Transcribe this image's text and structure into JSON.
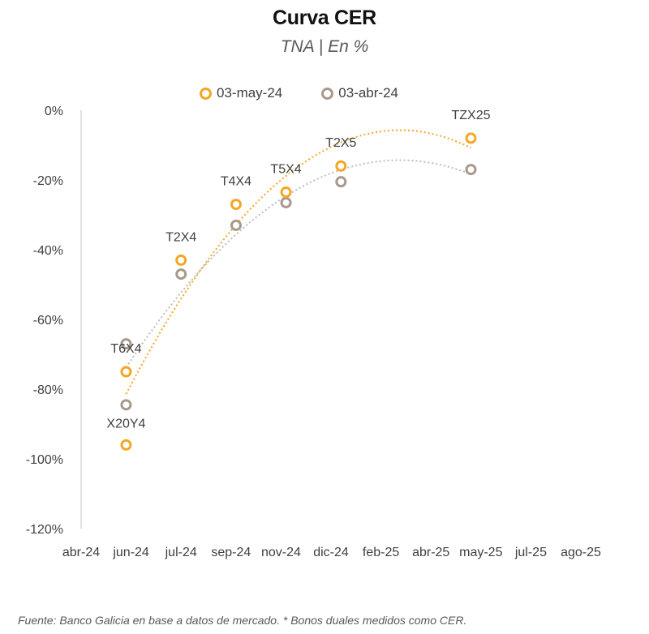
{
  "chart_data": {
    "type": "scatter",
    "title": "Curva CER",
    "subtitle": "TNA | En %",
    "xlabel": "",
    "ylabel": "",
    "x_tick_labels": [
      "abr-24",
      "jun-24",
      "jul-24",
      "sep-24",
      "nov-24",
      "dic-24",
      "feb-25",
      "abr-25",
      "may-25",
      "jul-25",
      "ago-25"
    ],
    "y_ticks": [
      0,
      -20,
      -40,
      -60,
      -80,
      -100,
      -120
    ],
    "y_tick_labels": [
      "0%",
      "-20%",
      "-40%",
      "-60%",
      "-80%",
      "-100%",
      "-120%"
    ],
    "ylim": [
      -120,
      0
    ],
    "legend_position": "top",
    "trendline": "polynomial (dotted)",
    "series": [
      {
        "name": "03-may-24",
        "color": "#F5A623",
        "points": [
          {
            "label": "X20Y4",
            "x": 0.9,
            "y": -96
          },
          {
            "label": "T6X4",
            "x": 0.9,
            "y": -75
          },
          {
            "label": "T2X4",
            "x": 2.0,
            "y": -43
          },
          {
            "label": "T4X4",
            "x": 3.1,
            "y": -27
          },
          {
            "label": "T5X4",
            "x": 4.1,
            "y": -23.5
          },
          {
            "label": "T2X5",
            "x": 5.2,
            "y": -16
          },
          {
            "label": "TZX25",
            "x": 7.8,
            "y": -8
          }
        ]
      },
      {
        "name": "03-abr-24",
        "color": "#A8998C",
        "points": [
          {
            "label": "X20Y4",
            "x": 0.9,
            "y": -84.5
          },
          {
            "label": "T6X4",
            "x": 0.9,
            "y": -67
          },
          {
            "label": "T2X4",
            "x": 2.0,
            "y": -47
          },
          {
            "label": "T4X4",
            "x": 3.1,
            "y": -33
          },
          {
            "label": "T5X4",
            "x": 4.1,
            "y": -26.5
          },
          {
            "label": "T2X5",
            "x": 5.2,
            "y": -20.5
          },
          {
            "label": "TZX25",
            "x": 7.8,
            "y": -17
          }
        ]
      }
    ],
    "point_labels": [
      {
        "text": "X20Y4",
        "x": 0.9,
        "y": -91
      },
      {
        "text": "T6X4",
        "x": 0.9,
        "y": -69.5
      },
      {
        "text": "T2X4",
        "x": 2.0,
        "y": -37.5
      },
      {
        "text": "T4X4",
        "x": 3.1,
        "y": -21.5
      },
      {
        "text": "T5X4",
        "x": 4.1,
        "y": -18
      },
      {
        "text": "T2X5",
        "x": 5.2,
        "y": -10.5
      },
      {
        "text": "TZX25",
        "x": 7.8,
        "y": -2.5
      }
    ]
  },
  "footer": "Fuente: Banco Galicia en base a datos de mercado. * Bonos duales medidos como CER."
}
